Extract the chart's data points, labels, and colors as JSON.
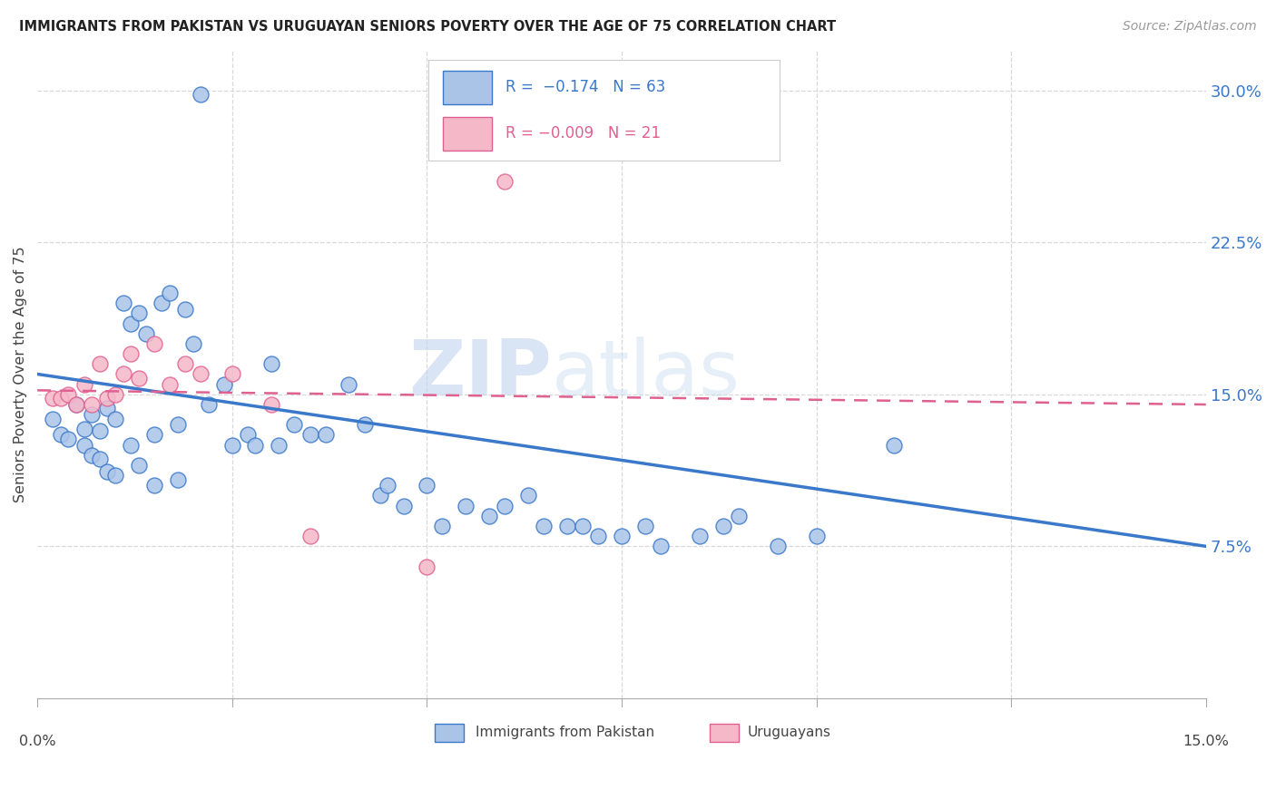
{
  "title": "IMMIGRANTS FROM PAKISTAN VS URUGUAYAN SENIORS POVERTY OVER THE AGE OF 75 CORRELATION CHART",
  "source": "Source: ZipAtlas.com",
  "ylabel": "Seniors Poverty Over the Age of 75",
  "xlim": [
    0.0,
    0.15
  ],
  "ylim": [
    0.0,
    0.32
  ],
  "color_pakistan": "#aac4e8",
  "color_uruguay": "#f5b8c8",
  "color_line_pakistan": "#3a78c9",
  "color_line_uruguay": "#e06090",
  "pakistan_scatter_x": [
    0.002,
    0.003,
    0.004,
    0.005,
    0.006,
    0.006,
    0.007,
    0.007,
    0.008,
    0.008,
    0.009,
    0.009,
    0.01,
    0.01,
    0.011,
    0.012,
    0.012,
    0.013,
    0.013,
    0.014,
    0.015,
    0.015,
    0.016,
    0.017,
    0.018,
    0.018,
    0.019,
    0.02,
    0.021,
    0.022,
    0.024,
    0.025,
    0.027,
    0.028,
    0.03,
    0.031,
    0.033,
    0.035,
    0.037,
    0.04,
    0.042,
    0.044,
    0.045,
    0.047,
    0.05,
    0.052,
    0.055,
    0.058,
    0.06,
    0.063,
    0.065,
    0.068,
    0.07,
    0.072,
    0.075,
    0.078,
    0.08,
    0.085,
    0.088,
    0.09,
    0.095,
    0.1,
    0.11
  ],
  "pakistan_scatter_y": [
    0.138,
    0.13,
    0.128,
    0.145,
    0.133,
    0.125,
    0.14,
    0.12,
    0.132,
    0.118,
    0.143,
    0.112,
    0.138,
    0.11,
    0.195,
    0.185,
    0.125,
    0.19,
    0.115,
    0.18,
    0.13,
    0.105,
    0.195,
    0.2,
    0.135,
    0.108,
    0.192,
    0.175,
    0.298,
    0.145,
    0.155,
    0.125,
    0.13,
    0.125,
    0.165,
    0.125,
    0.135,
    0.13,
    0.13,
    0.155,
    0.135,
    0.1,
    0.105,
    0.095,
    0.105,
    0.085,
    0.095,
    0.09,
    0.095,
    0.1,
    0.085,
    0.085,
    0.085,
    0.08,
    0.08,
    0.085,
    0.075,
    0.08,
    0.085,
    0.09,
    0.075,
    0.08,
    0.125
  ],
  "uruguay_scatter_x": [
    0.002,
    0.003,
    0.004,
    0.005,
    0.006,
    0.007,
    0.008,
    0.009,
    0.01,
    0.011,
    0.012,
    0.013,
    0.015,
    0.017,
    0.019,
    0.021,
    0.025,
    0.03,
    0.035,
    0.05,
    0.06
  ],
  "uruguay_scatter_y": [
    0.148,
    0.148,
    0.15,
    0.145,
    0.155,
    0.145,
    0.165,
    0.148,
    0.15,
    0.16,
    0.17,
    0.158,
    0.175,
    0.155,
    0.165,
    0.16,
    0.16,
    0.145,
    0.08,
    0.065,
    0.255
  ],
  "pakistan_line_x": [
    0.0,
    0.15
  ],
  "pakistan_line_y": [
    0.16,
    0.075
  ],
  "uruguay_line_x": [
    0.0,
    0.15
  ],
  "uruguay_line_y": [
    0.152,
    0.145
  ],
  "watermark_zip": "ZIP",
  "watermark_atlas": "atlas",
  "bg_color": "#ffffff",
  "grid_color": "#d8d8d8",
  "ytick_vals": [
    0.075,
    0.15,
    0.225,
    0.3
  ],
  "ytick_labels": [
    "7.5%",
    "15.0%",
    "22.5%",
    "30.0%"
  ]
}
